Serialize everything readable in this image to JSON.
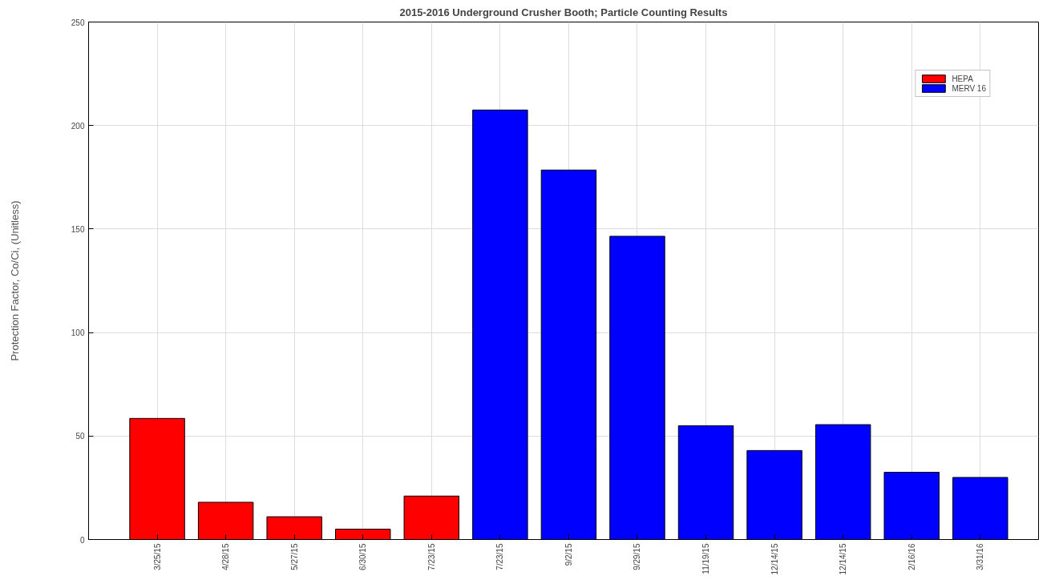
{
  "chart_data": {
    "type": "bar",
    "title": "2015-2016 Underground Crusher Booth; Particle Counting Results",
    "ylabel": "Protection Factor, Co/Ci, (Unitless)",
    "categories": [
      "3/25/15",
      "4/28/15",
      "5/27/15",
      "6/30/15",
      "7/23/15",
      "7/23/15",
      "9/2/15",
      "9/29/15",
      "11/19/15",
      "12/14/15",
      "12/14/15",
      "2/16/16",
      "3/31/16"
    ],
    "series": [
      {
        "name": "HEPA",
        "color": "#ff0000",
        "values": [
          58.5,
          18,
          11,
          5,
          21,
          null,
          null,
          null,
          null,
          null,
          null,
          null,
          null
        ]
      },
      {
        "name": "MERV 16",
        "color": "#0000ff",
        "values": [
          null,
          null,
          null,
          null,
          null,
          207.5,
          178.5,
          146.5,
          55,
          43,
          55.5,
          32.5,
          30
        ]
      }
    ],
    "ylim": [
      0,
      250
    ],
    "yticks": [
      0,
      50,
      100,
      150,
      200,
      250
    ],
    "grid": true,
    "legend": "top right"
  }
}
